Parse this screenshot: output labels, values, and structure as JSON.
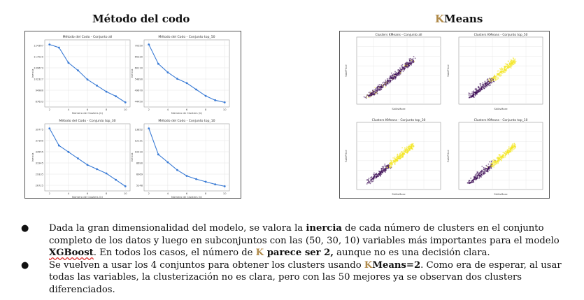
{
  "titles": {
    "left": "Método del codo",
    "right_k": "K",
    "right_rest": "Means"
  },
  "elbow_charts": [
    {
      "title": "Método del Codo - Conjunto all",
      "xlabel": "Número de Clusters (k)",
      "ylabel": "Inercia",
      "x": [
        2,
        3,
        4,
        5,
        6,
        7,
        8,
        9,
        10
      ],
      "y": [
        125000,
        123000,
        113000,
        108000,
        102000,
        98000,
        94000,
        91000,
        87000
      ]
    },
    {
      "title": "Método del Codo - Conjunto top_50",
      "xlabel": "Número de Clusters (k)",
      "ylabel": "Inercia",
      "x": [
        2,
        3,
        4,
        5,
        6,
        7,
        8,
        9,
        10
      ],
      "y": [
        71000,
        62000,
        58000,
        55000,
        53000,
        50000,
        47000,
        45000,
        44000
      ]
    },
    {
      "title": "Método del Codo - Conjunto top_30",
      "xlabel": "Número de Clusters (k)",
      "ylabel": "Inercia",
      "x": [
        2,
        3,
        4,
        5,
        6,
        7,
        8,
        9,
        10
      ],
      "y": [
        40000,
        36000,
        34500,
        33000,
        31500,
        30500,
        29500,
        28000,
        26500
      ]
    },
    {
      "title": "Método del Codo - Conjunto top_10",
      "xlabel": "Número de Clusters (k)",
      "ylabel": "Inercia",
      "x": [
        2,
        3,
        4,
        5,
        6,
        7,
        8,
        9,
        10
      ],
      "y": [
        14000,
        10000,
        8800,
        7600,
        6700,
        6200,
        5800,
        5400,
        5100
      ]
    }
  ],
  "cluster_charts": [
    {
      "title": "Clusters KMeans - Conjunto all",
      "xlabel": "SkillsMore",
      "ylabel": "SalePrice"
    },
    {
      "title": "Clusters KMeans - Conjunto top_50",
      "xlabel": "SkillsMore",
      "ylabel": "SalePrice"
    },
    {
      "title": "Clusters KMeans - Conjunto top_30",
      "xlabel": "SkillsMore",
      "ylabel": "SalePrice"
    },
    {
      "title": "Clusters KMeans - Conjunto top_10",
      "xlabel": "SkillsMore",
      "ylabel": "SalePrice"
    }
  ],
  "cluster_colors": {
    "c0": "#3b0a53",
    "c1": "#f4e61f"
  },
  "line_color": "#3a7bd5",
  "bullets": {
    "b1_p1": "Dada la gran dimensionalidad del modelo, se valora la ",
    "b1_inercia": "inercia",
    "b1_p2": " de cada número de clusters en el conjunto completo de los datos y luego en subconjuntos con las (50, 30, 10) variables más importantes para el modelo ",
    "b1_xgb": "XGBoost",
    "b1_p3": ". En todos los casos, el número de ",
    "b1_k": "K",
    "b1_parece": " parece ser 2,",
    "b1_p4": " aunque no es una decisión clara.",
    "b2_p1": "Se vuelven a usar los 4 conjuntos para obtener los clusters usando ",
    "b2_k": "K",
    "b2_means": "Means=2",
    "b2_p2": ". Como era de esperar, al usar todas las variables, la clusterización  no es clara, pero con las 50 mejores ya se observan dos  clusters diferenciados."
  }
}
